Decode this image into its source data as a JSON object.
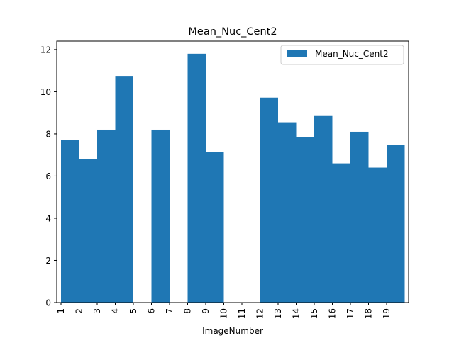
{
  "chart_data": {
    "type": "bar",
    "title": "Mean_Nuc_Cent2",
    "xlabel": "ImageNumber",
    "ylabel": "",
    "ylim": [
      0,
      12.4
    ],
    "yticks": [
      0,
      2,
      4,
      6,
      8,
      10,
      12
    ],
    "x_ticks": [
      "1",
      "2",
      "3",
      "4",
      "5",
      "6",
      "7",
      "8",
      "9",
      "10",
      "11",
      "12",
      "13",
      "14",
      "15",
      "16",
      "17",
      "18",
      "19"
    ],
    "bars": [
      {
        "x": 1,
        "value": 7.7
      },
      {
        "x": 2,
        "value": 6.8
      },
      {
        "x": 3,
        "value": 8.2
      },
      {
        "x": 4,
        "value": 10.75
      },
      {
        "x": 6,
        "value": 8.2
      },
      {
        "x": 8,
        "value": 11.8
      },
      {
        "x": 9,
        "value": 7.15
      },
      {
        "x": 12,
        "value": 9.72
      },
      {
        "x": 13,
        "value": 8.55
      },
      {
        "x": 14,
        "value": 7.85
      },
      {
        "x": 15,
        "value": 8.88
      },
      {
        "x": 16,
        "value": 6.6
      },
      {
        "x": 17,
        "value": 8.1
      },
      {
        "x": 18,
        "value": 6.4
      },
      {
        "x": 19,
        "value": 7.48
      }
    ],
    "series": [
      {
        "name": "Mean_Nuc_Cent2",
        "color": "#1f77b4"
      }
    ],
    "legend": {
      "placement": "top-right"
    },
    "grid": false
  }
}
